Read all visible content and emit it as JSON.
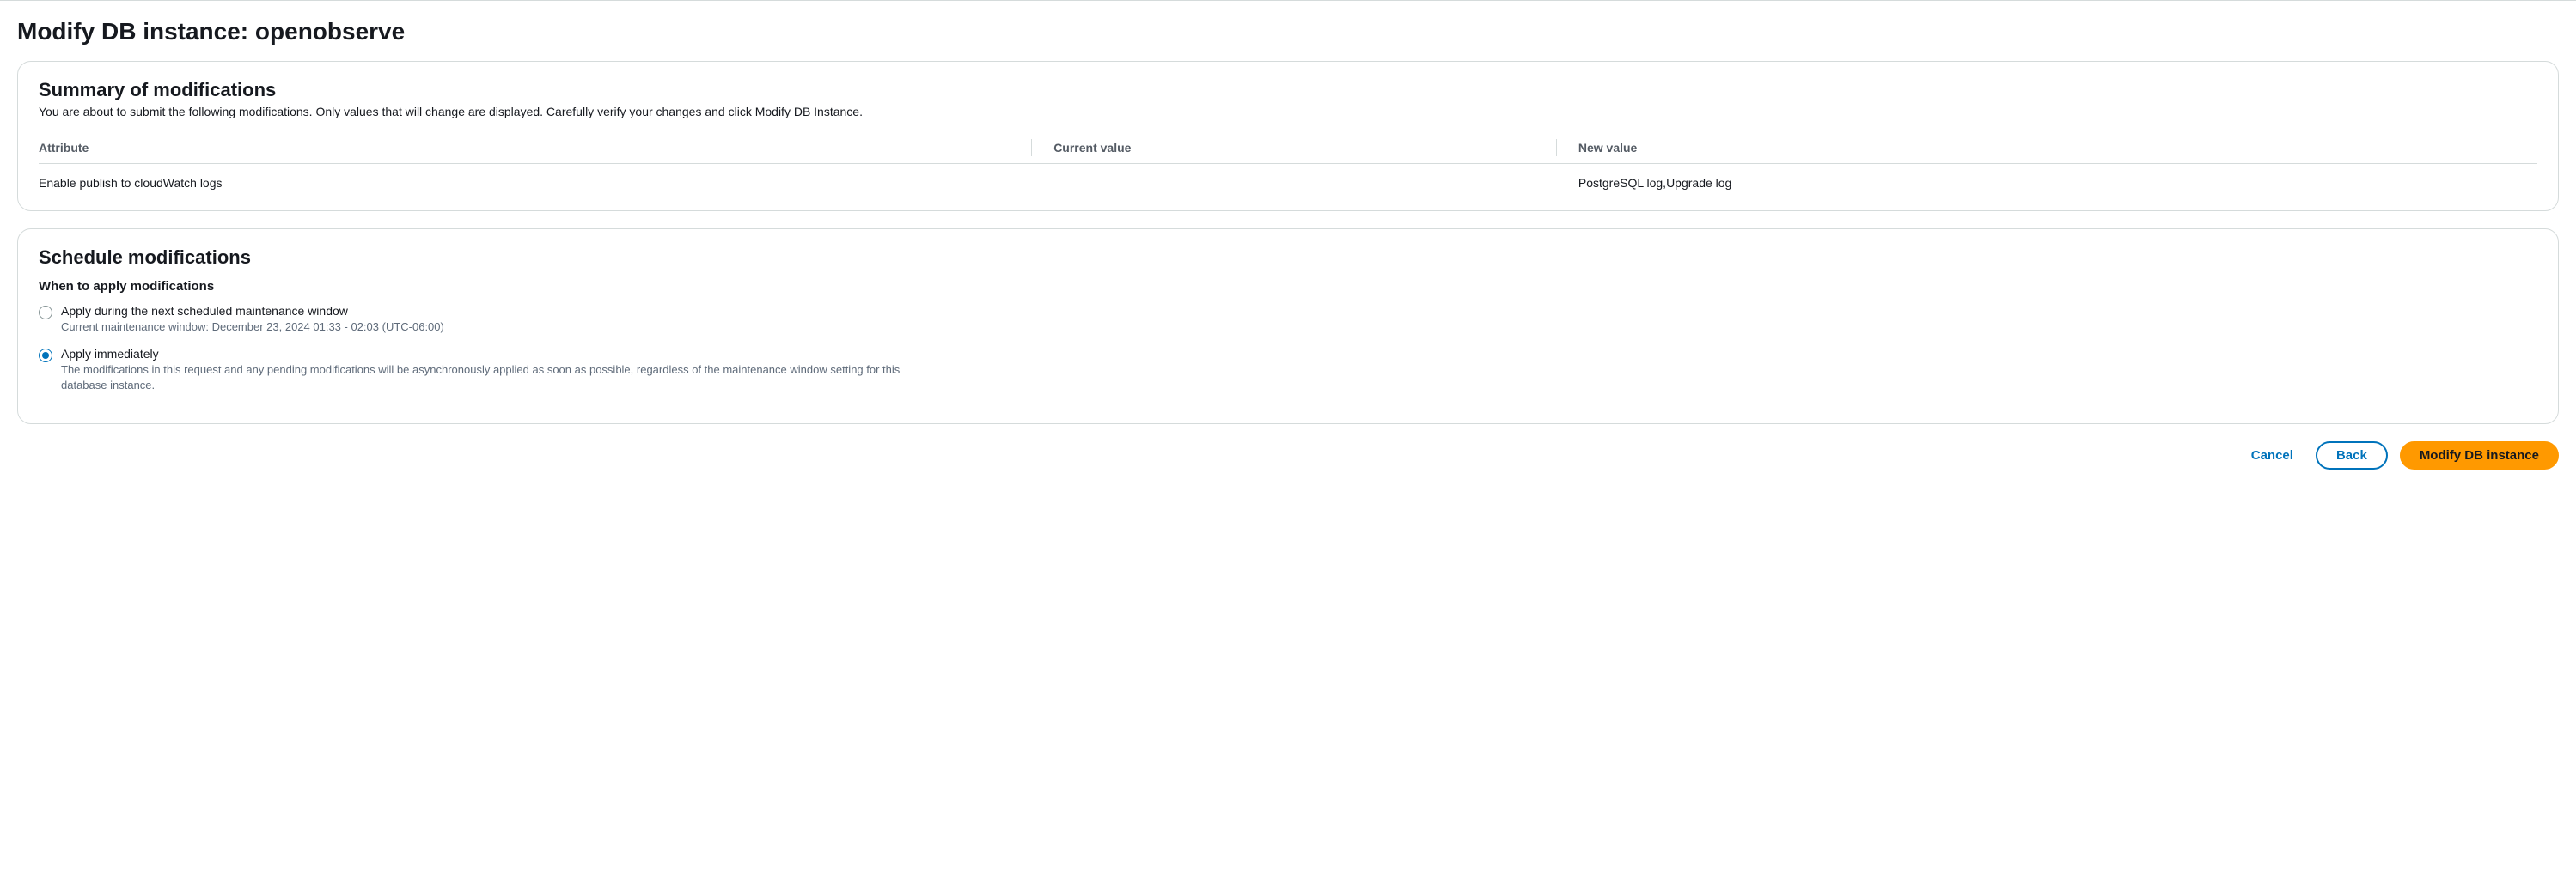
{
  "page": {
    "title": "Modify DB instance: openobserve"
  },
  "summary": {
    "heading": "Summary of modifications",
    "subtitle": "You are about to submit the following modifications. Only values that will change are displayed. Carefully verify your changes and click Modify DB Instance.",
    "columns": {
      "attribute": "Attribute",
      "current": "Current value",
      "new": "New value"
    },
    "rows": [
      {
        "attribute": "Enable publish to cloudWatch logs",
        "current": "",
        "new": "PostgreSQL log,Upgrade log"
      }
    ]
  },
  "schedule": {
    "heading": "Schedule modifications",
    "field_label": "When to apply modifications",
    "options": [
      {
        "label": "Apply during the next scheduled maintenance window",
        "description": "Current maintenance window: December 23, 2024 01:33 - 02:03 (UTC-06:00)",
        "selected": false
      },
      {
        "label": "Apply immediately",
        "description": "The modifications in this request and any pending modifications will be asynchronously applied as soon as possible, regardless of the maintenance window setting for this database instance.",
        "selected": true
      }
    ]
  },
  "buttons": {
    "cancel": "Cancel",
    "back": "Back",
    "modify": "Modify DB instance"
  },
  "colors": {
    "border": "#d5dbdb",
    "text_primary": "#16191f",
    "text_secondary": "#5f6b7a",
    "header_text": "#545b64",
    "link_blue": "#0073bb",
    "primary_orange": "#ff9900",
    "background": "#ffffff"
  }
}
